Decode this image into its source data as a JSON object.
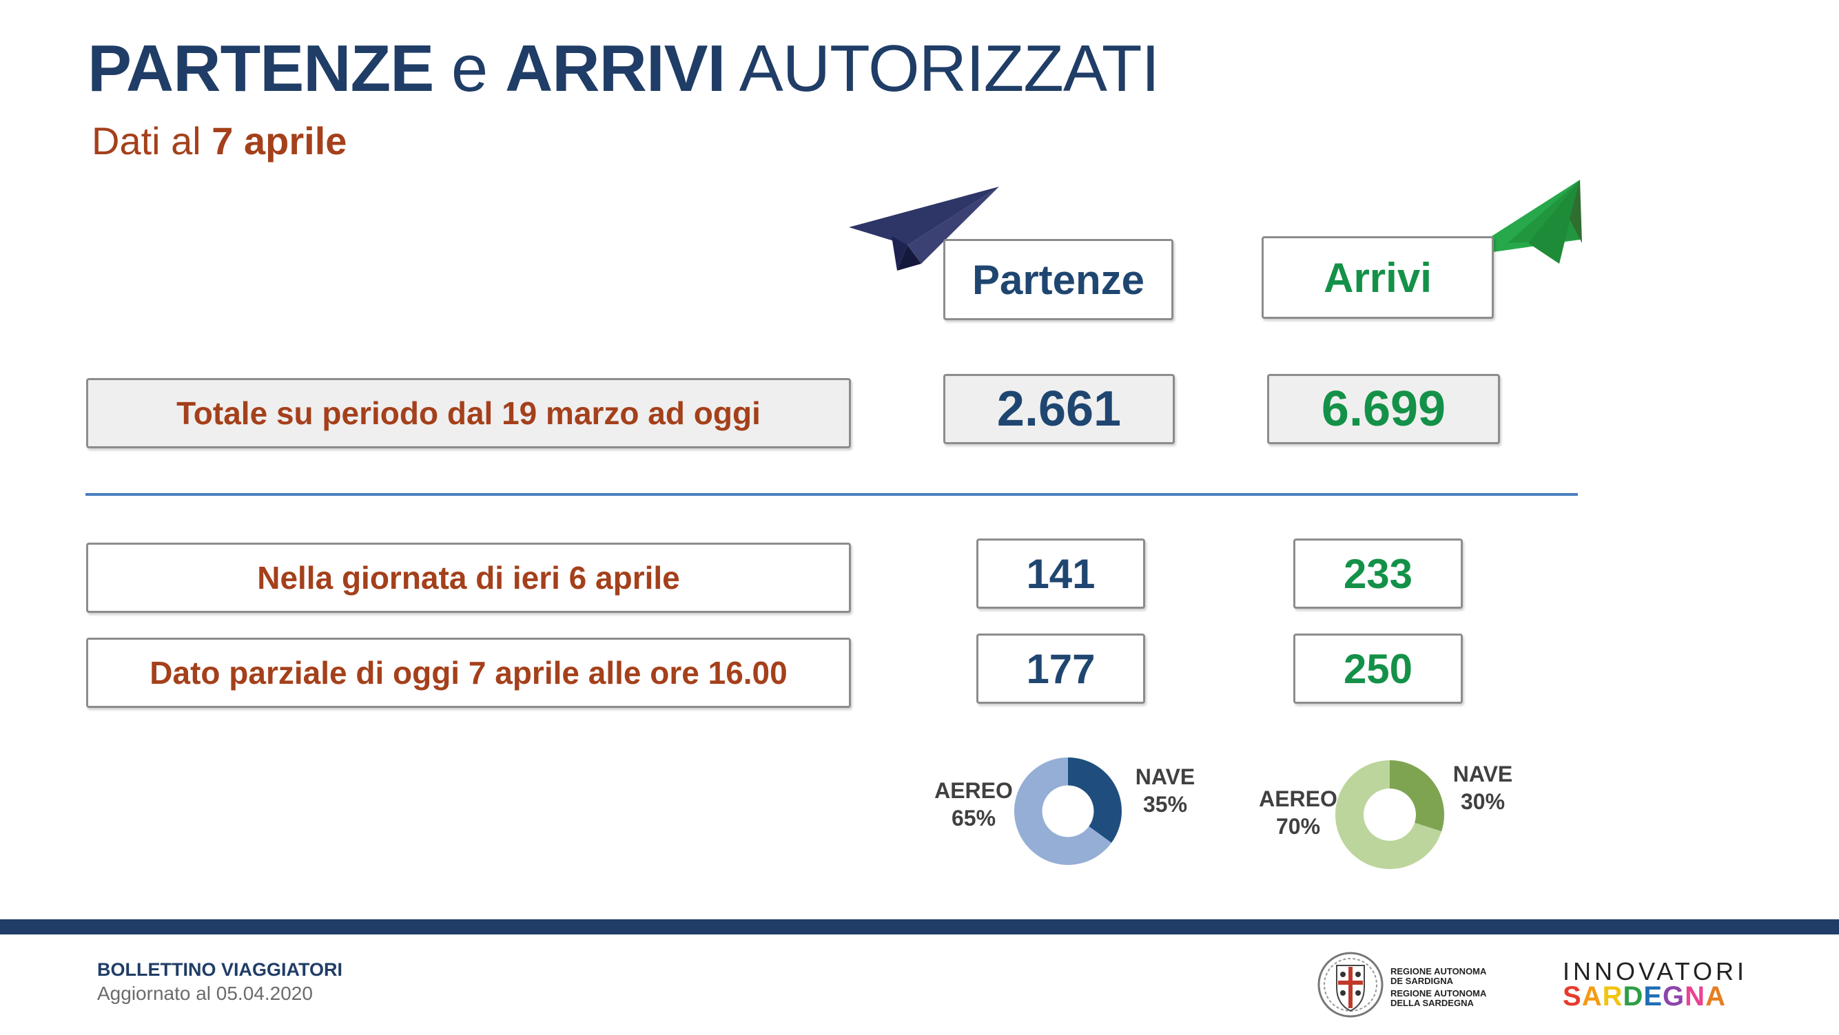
{
  "header": {
    "title_part1": "PARTENZE",
    "title_part2": " e ",
    "title_part3": "ARRIVI",
    "title_part4": " AUTORIZZATI",
    "subtitle_prefix": "Dati al ",
    "subtitle_date": "7 aprile"
  },
  "columns": {
    "partenze": "Partenze",
    "arrivi": "Arrivi"
  },
  "rows": {
    "totale_label": "Totale su periodo dal 19 marzo ad oggi",
    "ieri_label": "Nella giornata di ieri 6 aprile",
    "oggi_label": "Dato parziale di oggi 7 aprile alle ore 16.00"
  },
  "values": {
    "totale_partenze": "2.661",
    "totale_arrivi": "6.699",
    "ieri_partenze": "141",
    "ieri_arrivi": "233",
    "oggi_partenze": "177",
    "oggi_arrivi": "250"
  },
  "chart_data": [
    {
      "type": "pie",
      "categories": [
        "AEREO",
        "NAVE"
      ],
      "values": [
        65,
        35
      ],
      "labels": [
        "65%",
        "35%"
      ],
      "colors": [
        "#95aed6",
        "#1f4e7e"
      ]
    },
    {
      "type": "pie",
      "categories": [
        "AEREO",
        "NAVE"
      ],
      "values": [
        70,
        30
      ],
      "labels": [
        "70%",
        "30%"
      ],
      "colors": [
        "#bcd59c",
        "#7fa451"
      ]
    }
  ],
  "colors": {
    "title_blue": "#1f3d66",
    "label_brown": "#a4401b",
    "value_blue": "#1f4670",
    "value_green": "#149148",
    "divider": "#4a7fc1"
  },
  "icons": {
    "partenze": "paper-plane-icon",
    "arrivi": "paper-plane-icon"
  },
  "footer": {
    "bollettino": "BOLLETTINO VIAGGIATORI",
    "aggiornato": "Aggiornato al 05.04.2020",
    "regione_line1": "REGIONE AUTONOMA",
    "regione_line2": "DE SARDIGNA",
    "regione_line3": "REGIONE AUTONOMA",
    "regione_line4": "DELLA SARDEGNA",
    "innovatori": "INNOVATORI",
    "sardegna_letters": [
      "S",
      "A",
      "R",
      "D",
      "E",
      "G",
      "N",
      "A"
    ],
    "sardegna_colors": [
      "#e63b2e",
      "#f39c12",
      "#f1c40f",
      "#2e9e47",
      "#1f6fb5",
      "#8e44ad",
      "#e84393",
      "#e67e22"
    ]
  }
}
